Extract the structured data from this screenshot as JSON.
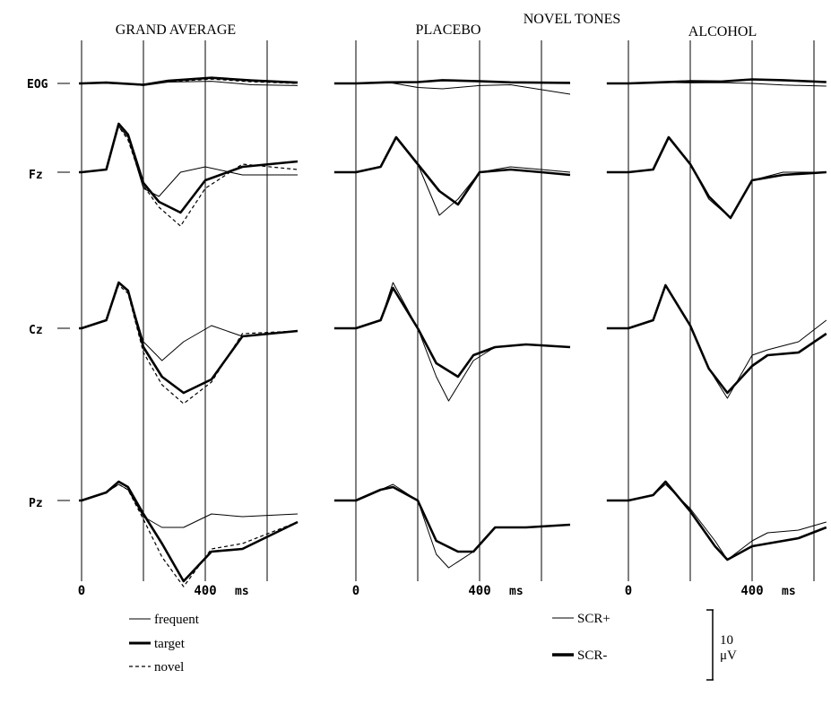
{
  "figure": {
    "title": "NOVEL TONES",
    "x_tick_start": "0",
    "x_tick_end": "400",
    "x_unit": "ms",
    "scale_bar_value": "10",
    "scale_bar_unit": "μV"
  },
  "chart_data": [
    {
      "type": "line",
      "title": "GRAND AVERAGE",
      "xlabel": "ms",
      "x_ticks": [
        "0",
        "400"
      ],
      "xlim": [
        0,
        700
      ],
      "gridlines_x_ms": [
        0,
        200,
        400,
        600
      ],
      "channels": [
        "EOG",
        "Fz",
        "Cz",
        "Pz"
      ],
      "series_styles": {
        "frequent": "thin",
        "target": "bold",
        "novel": "dashed"
      },
      "series": [
        {
          "channel": "EOG",
          "name": "frequent",
          "x": [
            -20,
            0,
            80,
            200,
            280,
            420,
            550,
            700
          ],
          "y": [
            0,
            0,
            0.5,
            -0.8,
            0.5,
            0.8,
            -0.5,
            -0.8
          ]
        },
        {
          "channel": "EOG",
          "name": "target",
          "x": [
            -20,
            0,
            80,
            200,
            280,
            420,
            550,
            700
          ],
          "y": [
            0,
            0,
            0.3,
            -0.5,
            1,
            2.1,
            1.1,
            0.3
          ]
        },
        {
          "channel": "EOG",
          "name": "novel",
          "x": [
            -20,
            0,
            80,
            200,
            280,
            420,
            550,
            700
          ],
          "y": [
            0,
            0,
            0.3,
            -0.4,
            0.6,
            1.6,
            0.6,
            0
          ]
        },
        {
          "channel": "Fz",
          "name": "frequent",
          "x": [
            -20,
            0,
            80,
            120,
            150,
            200,
            250,
            320,
            400,
            520,
            700
          ],
          "y": [
            0,
            0,
            1,
            17,
            13,
            -6,
            -9,
            0,
            2,
            -1,
            -1
          ]
        },
        {
          "channel": "Fz",
          "name": "target",
          "x": [
            -20,
            0,
            80,
            120,
            150,
            200,
            250,
            320,
            400,
            520,
            700
          ],
          "y": [
            0,
            0,
            1,
            18,
            14,
            -4,
            -11,
            -15,
            -3,
            2,
            4
          ]
        },
        {
          "channel": "Fz",
          "name": "novel",
          "x": [
            -20,
            0,
            80,
            120,
            150,
            200,
            250,
            320,
            400,
            520,
            700
          ],
          "y": [
            0,
            0,
            1,
            17,
            12,
            -5,
            -13,
            -20,
            -6,
            3,
            1
          ]
        },
        {
          "channel": "Cz",
          "name": "frequent",
          "x": [
            -20,
            0,
            80,
            120,
            150,
            200,
            260,
            330,
            420,
            520,
            700
          ],
          "y": [
            0,
            0,
            3,
            17,
            14,
            -5,
            -12,
            -5,
            1,
            -3,
            -1
          ]
        },
        {
          "channel": "Cz",
          "name": "target",
          "x": [
            -20,
            0,
            80,
            120,
            150,
            200,
            260,
            330,
            420,
            520,
            700
          ],
          "y": [
            0,
            0,
            3,
            17,
            14,
            -7,
            -18,
            -24,
            -19,
            -3,
            -1
          ]
        },
        {
          "channel": "Cz",
          "name": "novel",
          "x": [
            -20,
            0,
            80,
            120,
            150,
            200,
            260,
            330,
            420,
            520,
            700
          ],
          "y": [
            0,
            0,
            3,
            16,
            13,
            -9,
            -21,
            -28,
            -20,
            -2,
            -1
          ]
        },
        {
          "channel": "Pz",
          "name": "frequent",
          "x": [
            -20,
            0,
            80,
            120,
            150,
            200,
            260,
            330,
            420,
            520,
            700
          ],
          "y": [
            0,
            0,
            3,
            6,
            4,
            -6,
            -10,
            -10,
            -5,
            -6,
            -5
          ]
        },
        {
          "channel": "Pz",
          "name": "target",
          "x": [
            -20,
            0,
            80,
            120,
            150,
            200,
            260,
            330,
            420,
            520,
            700
          ],
          "y": [
            0,
            0,
            3,
            7,
            5,
            -5,
            -16,
            -30,
            -19,
            -18,
            -8
          ]
        },
        {
          "channel": "Pz",
          "name": "novel",
          "x": [
            -20,
            0,
            80,
            120,
            150,
            200,
            260,
            330,
            420,
            520,
            700
          ],
          "y": [
            0,
            0,
            3,
            6,
            4,
            -7,
            -21,
            -32,
            -18,
            -16,
            -8
          ]
        }
      ]
    },
    {
      "type": "line",
      "title": "PLACEBO",
      "xlabel": "ms",
      "x_ticks": [
        "0",
        "400"
      ],
      "xlim": [
        -70,
        700
      ],
      "gridlines_x_ms": [
        0,
        200,
        400,
        600
      ],
      "channels": [
        "EOG",
        "Fz",
        "Cz",
        "Pz"
      ],
      "series_styles": {
        "SCR+": "thin",
        "SCR-": "bold"
      },
      "series": [
        {
          "channel": "EOG",
          "name": "SCR+",
          "x": [
            -70,
            0,
            100,
            200,
            280,
            400,
            500,
            700
          ],
          "y": [
            0,
            0,
            0.5,
            -1.5,
            -2,
            -0.8,
            -0.5,
            -4
          ]
        },
        {
          "channel": "EOG",
          "name": "SCR-",
          "x": [
            -70,
            0,
            100,
            200,
            280,
            400,
            500,
            700
          ],
          "y": [
            0,
            0,
            0.4,
            0.5,
            1.2,
            0.8,
            0.4,
            0.2
          ]
        },
        {
          "channel": "Fz",
          "name": "SCR+",
          "x": [
            -70,
            0,
            80,
            130,
            200,
            270,
            330,
            400,
            500,
            600,
            700
          ],
          "y": [
            0,
            0,
            2,
            13,
            3,
            -16,
            -10,
            0,
            2,
            1,
            0
          ]
        },
        {
          "channel": "Fz",
          "name": "SCR-",
          "x": [
            -70,
            0,
            80,
            130,
            200,
            270,
            330,
            400,
            500,
            600,
            700
          ],
          "y": [
            0,
            0,
            2,
            13,
            3,
            -7,
            -12,
            0,
            1,
            0,
            -1
          ]
        },
        {
          "channel": "Cz",
          "name": "SCR+",
          "x": [
            -70,
            0,
            80,
            120,
            200,
            260,
            300,
            380,
            450,
            550,
            700
          ],
          "y": [
            0,
            0,
            3,
            17,
            0,
            -18,
            -27,
            -12,
            -7,
            -6,
            -7
          ]
        },
        {
          "channel": "Cz",
          "name": "SCR-",
          "x": [
            -70,
            0,
            80,
            120,
            200,
            260,
            330,
            380,
            450,
            550,
            700
          ],
          "y": [
            0,
            0,
            3,
            15,
            0,
            -13,
            -18,
            -10,
            -7,
            -6,
            -7
          ]
        },
        {
          "channel": "Pz",
          "name": "SCR+",
          "x": [
            -70,
            0,
            80,
            120,
            200,
            260,
            300,
            380,
            450,
            550,
            700
          ],
          "y": [
            0,
            0,
            4,
            6,
            0,
            -20,
            -25,
            -19,
            -10,
            -10,
            -9
          ]
        },
        {
          "channel": "Pz",
          "name": "SCR-",
          "x": [
            -70,
            0,
            80,
            120,
            200,
            260,
            330,
            380,
            450,
            550,
            700
          ],
          "y": [
            0,
            0,
            4,
            5,
            0,
            -15,
            -19,
            -19,
            -10,
            -10,
            -9
          ]
        }
      ]
    },
    {
      "type": "line",
      "title": "ALCOHOL",
      "xlabel": "ms",
      "x_ticks": [
        "0",
        "400"
      ],
      "xlim": [
        -70,
        640
      ],
      "gridlines_x_ms": [
        0,
        200,
        400,
        600
      ],
      "channels": [
        "EOG",
        "Fz",
        "Cz",
        "Pz"
      ],
      "series_styles": {
        "SCR+": "thin",
        "SCR-": "bold"
      },
      "series": [
        {
          "channel": "EOG",
          "name": "SCR+",
          "x": [
            -70,
            0,
            100,
            200,
            300,
            400,
            500,
            640
          ],
          "y": [
            0,
            0,
            0.4,
            0.2,
            0.3,
            0,
            -0.6,
            -1
          ]
        },
        {
          "channel": "EOG",
          "name": "SCR-",
          "x": [
            -70,
            0,
            100,
            200,
            300,
            400,
            500,
            640
          ],
          "y": [
            0,
            0,
            0.4,
            0.8,
            0.7,
            1.5,
            1.2,
            0.5
          ]
        },
        {
          "channel": "Fz",
          "name": "SCR+",
          "x": [
            -70,
            0,
            80,
            130,
            200,
            260,
            330,
            400,
            500,
            640
          ],
          "y": [
            0,
            0,
            1,
            13,
            3,
            -10,
            -17,
            -3,
            0,
            0
          ]
        },
        {
          "channel": "Fz",
          "name": "SCR-",
          "x": [
            -70,
            0,
            80,
            130,
            200,
            260,
            330,
            400,
            500,
            640
          ],
          "y": [
            0,
            0,
            1,
            13,
            3,
            -9,
            -17,
            -3,
            -1,
            0
          ]
        },
        {
          "channel": "Cz",
          "name": "SCR+",
          "x": [
            -70,
            0,
            80,
            120,
            200,
            260,
            320,
            400,
            450,
            550,
            640
          ],
          "y": [
            0,
            0,
            3,
            16,
            1,
            -15,
            -26,
            -10,
            -8,
            -5,
            3
          ]
        },
        {
          "channel": "Cz",
          "name": "SCR-",
          "x": [
            -70,
            0,
            80,
            120,
            200,
            260,
            320,
            400,
            450,
            550,
            640
          ],
          "y": [
            0,
            0,
            3,
            16,
            1,
            -15,
            -24,
            -14,
            -10,
            -9,
            -2
          ]
        },
        {
          "channel": "Pz",
          "name": "SCR+",
          "x": [
            -70,
            0,
            80,
            120,
            200,
            280,
            320,
            400,
            450,
            550,
            640
          ],
          "y": [
            0,
            0,
            2,
            6,
            -3,
            -15,
            -22,
            -15,
            -12,
            -11,
            -8
          ]
        },
        {
          "channel": "Pz",
          "name": "SCR-",
          "x": [
            -70,
            0,
            80,
            120,
            200,
            280,
            320,
            400,
            450,
            550,
            640
          ],
          "y": [
            0,
            0,
            2,
            7,
            -4,
            -17,
            -22,
            -17,
            -16,
            -14,
            -10
          ]
        }
      ]
    }
  ],
  "legend_left": {
    "items": [
      {
        "label": "frequent",
        "style": "thin"
      },
      {
        "label": "target",
        "style": "bold"
      },
      {
        "label": "novel",
        "style": "dashed"
      }
    ]
  },
  "legend_right": {
    "items": [
      {
        "label": "SCR+",
        "style": "thin"
      },
      {
        "label": "SCR-",
        "style": "bold"
      }
    ]
  },
  "colors": {
    "ink": "#000000",
    "background": "#ffffff"
  }
}
